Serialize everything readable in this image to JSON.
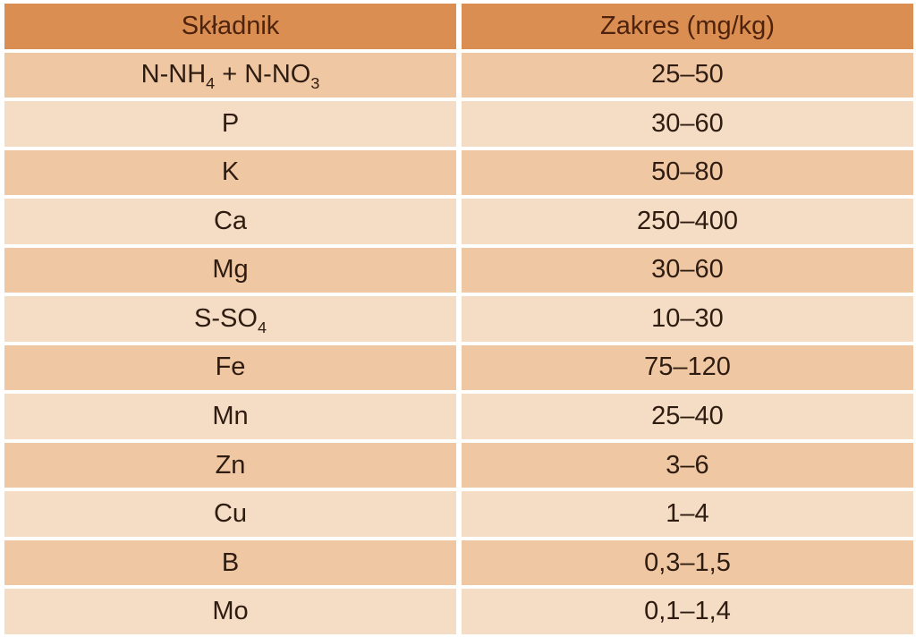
{
  "colors": {
    "header_bg": "#db8e52",
    "row_dark_bg": "#f0c7a3",
    "row_light_bg": "#f5dcc5",
    "header_text": "#4e230d",
    "body_text": "#2e1c10",
    "gap_color": "#ffffff"
  },
  "table": {
    "columns": [
      {
        "label": "Składnik"
      },
      {
        "label": "Zakres (mg/kg)"
      }
    ],
    "rows": [
      {
        "component": [
          {
            "text": "N-NH"
          },
          {
            "sub": "4"
          },
          {
            "text": " + N-NO"
          },
          {
            "sub": "3"
          }
        ],
        "range": "25–50"
      },
      {
        "component": [
          {
            "text": "P"
          }
        ],
        "range": "30–60"
      },
      {
        "component": [
          {
            "text": "K"
          }
        ],
        "range": "50–80"
      },
      {
        "component": [
          {
            "text": "Ca"
          }
        ],
        "range": "250–400"
      },
      {
        "component": [
          {
            "text": "Mg"
          }
        ],
        "range": "30–60"
      },
      {
        "component": [
          {
            "text": "S-SO"
          },
          {
            "sub": "4"
          }
        ],
        "range": "10–30"
      },
      {
        "component": [
          {
            "text": "Fe"
          }
        ],
        "range": "75–120"
      },
      {
        "component": [
          {
            "text": "Mn"
          }
        ],
        "range": "25–40"
      },
      {
        "component": [
          {
            "text": "Zn"
          }
        ],
        "range": "3–6"
      },
      {
        "component": [
          {
            "text": "Cu"
          }
        ],
        "range": "1–4"
      },
      {
        "component": [
          {
            "text": "B"
          }
        ],
        "range": "0,3–1,5"
      },
      {
        "component": [
          {
            "text": "Mo"
          }
        ],
        "range": "0,1–1,4"
      }
    ]
  },
  "chart_data": {
    "type": "table",
    "title": "",
    "columns": [
      "Składnik",
      "Zakres (mg/kg)"
    ],
    "rows": [
      [
        "N-NH4 + N-NO3",
        "25–50"
      ],
      [
        "P",
        "30–60"
      ],
      [
        "K",
        "50–80"
      ],
      [
        "Ca",
        "250–400"
      ],
      [
        "Mg",
        "30–60"
      ],
      [
        "S-SO4",
        "10–30"
      ],
      [
        "Fe",
        "75–120"
      ],
      [
        "Mn",
        "25–40"
      ],
      [
        "Zn",
        "3–6"
      ],
      [
        "Cu",
        "1–4"
      ],
      [
        "B",
        "0,3–1,5"
      ],
      [
        "Mo",
        "0,1–1,4"
      ]
    ]
  }
}
